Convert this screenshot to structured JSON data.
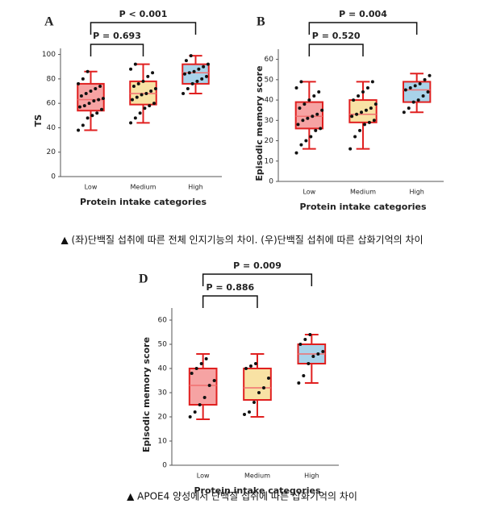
{
  "chart_data": [
    {
      "type": "box",
      "panel": "A",
      "ylabel": "TS",
      "xlabel": "Protein intake categories",
      "categories": [
        "Low",
        "Medium",
        "High"
      ],
      "colors": [
        "#f6a3a3",
        "#f8e2a4",
        "#a9d3ea"
      ],
      "annotations": [
        "P < 0.001",
        "P = 0.693"
      ],
      "ylim": [
        0,
        105
      ],
      "yticks": [
        0,
        20,
        40,
        60,
        80,
        100
      ],
      "boxes": [
        {
          "whisker_low": 38,
          "q1": 54,
          "median": 63,
          "q3": 76,
          "whisker_high": 86,
          "points": [
            38,
            42,
            48,
            50,
            52,
            55,
            57,
            58,
            60,
            62,
            63,
            64,
            66,
            68,
            70,
            72,
            74,
            76,
            80,
            86
          ]
        },
        {
          "whisker_low": 44,
          "q1": 59,
          "median": 68,
          "q3": 78,
          "whisker_high": 92,
          "points": [
            44,
            48,
            52,
            56,
            58,
            60,
            63,
            65,
            67,
            68,
            70,
            72,
            74,
            76,
            78,
            82,
            85,
            88,
            92
          ]
        },
        {
          "whisker_low": 68,
          "q1": 76,
          "median": 85,
          "q3": 92,
          "whisker_high": 99,
          "points": [
            68,
            72,
            76,
            78,
            80,
            82,
            84,
            85,
            86,
            88,
            90,
            92,
            95,
            99
          ]
        }
      ]
    },
    {
      "type": "box",
      "panel": "B",
      "ylabel": "Episodic memory score",
      "xlabel": "Protein intake categories",
      "categories": [
        "Low",
        "Medium",
        "High"
      ],
      "colors": [
        "#f6a3a3",
        "#f8e2a4",
        "#a9d3ea"
      ],
      "annotations": [
        "P = 0.004",
        "P = 0.520"
      ],
      "ylim": [
        0,
        65
      ],
      "yticks": [
        0,
        10,
        20,
        30,
        40,
        50,
        60
      ],
      "boxes": [
        {
          "whisker_low": 16,
          "q1": 26,
          "median": 32,
          "q3": 39,
          "whisker_high": 49,
          "points": [
            14,
            18,
            20,
            22,
            25,
            26,
            28,
            30,
            31,
            32,
            33,
            35,
            36,
            38,
            40,
            42,
            44,
            46,
            49
          ]
        },
        {
          "whisker_low": 16,
          "q1": 29,
          "median": 33,
          "q3": 40,
          "whisker_high": 49,
          "points": [
            16,
            22,
            25,
            28,
            29,
            30,
            32,
            33,
            34,
            35,
            36,
            38,
            40,
            42,
            44,
            46,
            49
          ]
        },
        {
          "whisker_low": 34,
          "q1": 39,
          "median": 45,
          "q3": 49,
          "whisker_high": 53,
          "points": [
            34,
            36,
            39,
            40,
            42,
            44,
            45,
            46,
            47,
            48,
            50,
            52
          ]
        }
      ]
    },
    {
      "type": "box",
      "panel": "D",
      "ylabel": "Episodic memory score",
      "xlabel": "Protein intake categories",
      "categories": [
        "Low",
        "Medium",
        "High"
      ],
      "colors": [
        "#f6a3a3",
        "#f8e2a4",
        "#a9d3ea"
      ],
      "annotations": [
        "P = 0.009",
        "P = 0.886"
      ],
      "ylim": [
        0,
        65
      ],
      "yticks": [
        0,
        10,
        20,
        30,
        40,
        50,
        60
      ],
      "boxes": [
        {
          "whisker_low": 19,
          "q1": 25,
          "median": 33,
          "q3": 40,
          "whisker_high": 46,
          "points": [
            20,
            22,
            25,
            28,
            33,
            35,
            38,
            40,
            42,
            44
          ]
        },
        {
          "whisker_low": 20,
          "q1": 27,
          "median": 32,
          "q3": 40,
          "whisker_high": 46,
          "points": [
            21,
            22,
            26,
            30,
            32,
            36,
            40,
            41,
            42
          ]
        },
        {
          "whisker_low": 34,
          "q1": 42,
          "median": 46,
          "q3": 50,
          "whisker_high": 54,
          "points": [
            34,
            37,
            42,
            45,
            46,
            47,
            50,
            52,
            54
          ]
        }
      ]
    }
  ],
  "captions": [
    "▲ (좌)단백질 섭취에 따른 전체 인지기능의 차이. (우)단백질 섭취에 따른 삽화기억의 차이",
    "▲ APOE4 양성에서 단백질 섭취에 따른 삽화기억의 차이"
  ]
}
